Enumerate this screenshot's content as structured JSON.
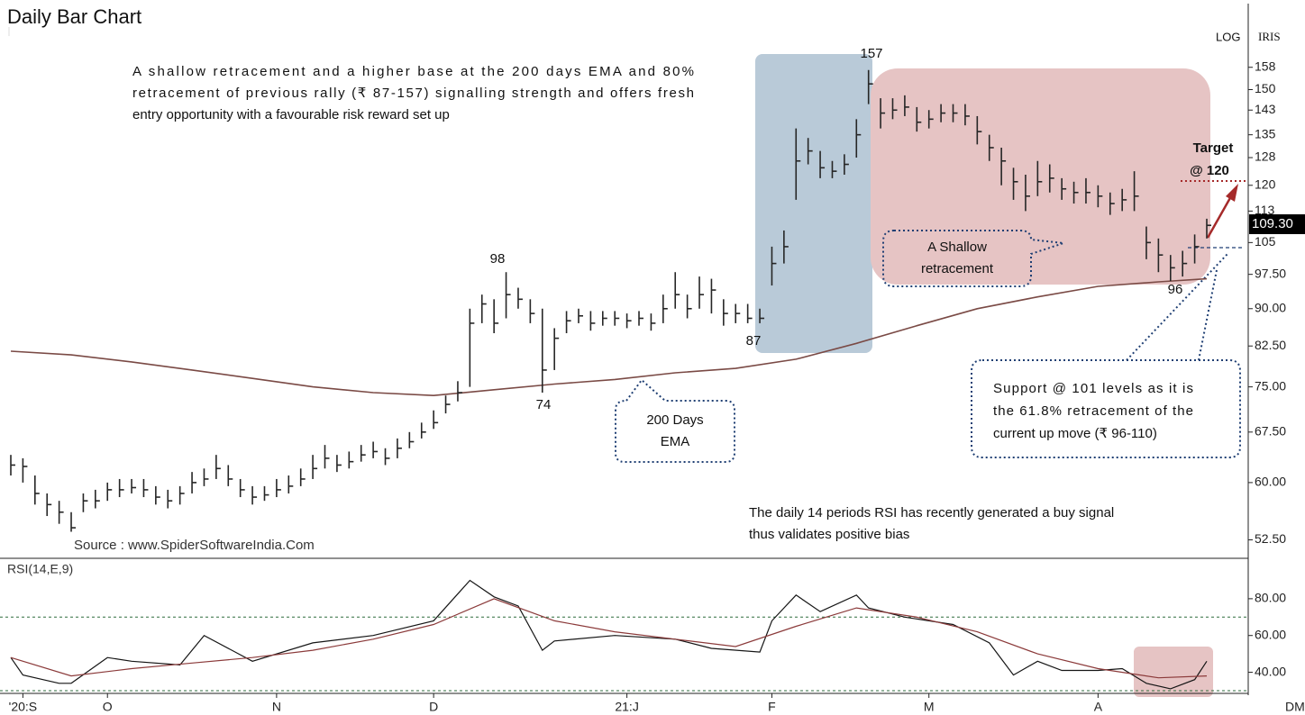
{
  "chart_data": [
    {
      "type": "ohlc",
      "title": "Daily Bar Chart",
      "scale_label": "LOG",
      "symbol": "IRIS",
      "source": "Source : www.SpiderSoftwareIndia.Com",
      "log_scale": true,
      "color": "#262626",
      "xlim": [
        0,
        99
      ],
      "ylim": [
        50.5,
        181
      ],
      "yticks": [
        {
          "value": 52.5,
          "label": "52.50"
        },
        {
          "value": 60,
          "label": "60.00"
        },
        {
          "value": 67.5,
          "label": "67.50"
        },
        {
          "value": 75,
          "label": "75.00"
        },
        {
          "value": 82.5,
          "label": "82.50"
        },
        {
          "value": 90,
          "label": "90.00"
        },
        {
          "value": 97.5,
          "label": "97.50"
        },
        105,
        113,
        120,
        128,
        135,
        143,
        150,
        158
      ],
      "high": [
        64,
        63.5,
        61,
        58.5,
        57.5,
        56,
        58.5,
        59,
        60,
        60.5,
        60.5,
        60.5,
        59.5,
        59,
        59.5,
        61.5,
        62,
        64,
        62.5,
        60.5,
        59.5,
        59.5,
        60.5,
        61,
        62,
        64,
        65.5,
        64,
        64.5,
        65.5,
        66,
        65,
        66.5,
        67.5,
        69,
        71,
        73.5,
        76,
        90,
        93,
        92,
        98,
        94.5,
        92,
        90,
        86,
        89.5,
        90,
        89.5,
        89.5,
        89.5,
        89,
        89.5,
        89,
        93,
        98,
        93,
        97,
        96.5,
        92,
        91,
        91,
        90,
        104,
        108,
        137,
        134,
        130,
        127,
        129,
        140,
        157,
        147,
        147,
        148,
        144,
        143,
        145,
        145,
        145,
        141,
        135,
        131,
        125,
        123,
        127,
        126,
        122,
        121,
        122,
        120,
        118,
        119,
        124,
        109,
        106,
        102,
        103,
        107,
        111
      ],
      "low": [
        61,
        60,
        57,
        55.5,
        54.5,
        53.5,
        56,
        56.5,
        57.5,
        58,
        58.5,
        58,
        57,
        56.5,
        57,
        58.5,
        59.5,
        60.5,
        59.5,
        58,
        57,
        57.5,
        58,
        58.5,
        59.5,
        60.5,
        62,
        61.5,
        62,
        63,
        63.5,
        62.5,
        63.5,
        65,
        66.5,
        68,
        70.5,
        72.5,
        75,
        87,
        85,
        88,
        90,
        87,
        74,
        78,
        85,
        87,
        85.5,
        86.5,
        86.5,
        86,
        86.5,
        85.5,
        87,
        90,
        88,
        90,
        89,
        86.5,
        87,
        87,
        87,
        95,
        100,
        116,
        126,
        122,
        122,
        123,
        128,
        145,
        137,
        140,
        141,
        136,
        137,
        139,
        139,
        138,
        132,
        127,
        120,
        116,
        113,
        117,
        118,
        116,
        115,
        115,
        114,
        112,
        113,
        113,
        101,
        98,
        96,
        97,
        100,
        106
      ],
      "close": [
        62.5,
        62.3,
        58.5,
        57,
        56,
        54,
        57.5,
        57.5,
        59,
        59,
        59.3,
        59,
        58,
        57.5,
        58.5,
        60,
        60.5,
        62,
        60.5,
        59,
        58,
        58.3,
        59,
        59.5,
        60.5,
        62,
        63.5,
        62.5,
        63,
        64,
        64.5,
        63.5,
        65,
        66,
        67.5,
        69,
        72,
        74,
        87,
        91,
        87,
        93,
        92,
        89,
        78,
        84,
        87.5,
        88.5,
        87,
        88,
        88,
        87.5,
        88,
        87,
        90,
        93,
        90,
        93,
        94,
        89,
        89,
        88,
        88,
        100,
        104,
        127,
        130,
        125,
        124,
        126,
        135,
        152,
        142,
        143,
        144,
        139,
        140,
        142,
        142,
        141,
        136,
        131,
        127,
        121,
        117,
        121,
        122,
        119,
        118,
        118,
        117,
        115,
        116,
        117,
        105,
        102,
        99,
        100,
        104,
        109.3
      ],
      "ema": {
        "color": "#7a4a45",
        "x": [
          0,
          5,
          10,
          15,
          20,
          25,
          30,
          35,
          40,
          45,
          50,
          55,
          60,
          65,
          70,
          75,
          80,
          85,
          90,
          95,
          99
        ],
        "values": [
          81.5,
          80.8,
          79.5,
          78,
          76.5,
          75,
          74,
          73.5,
          74.5,
          75.5,
          76.3,
          77.5,
          78.3,
          80,
          83,
          86.5,
          90,
          92.5,
          94.8,
          95.8,
          96.5
        ]
      },
      "price_tag": "109.30",
      "note": [
        "A shallow retracement and a higher base at the 200 days EMA and 80%",
        "retracement of previous rally (₹ 87-157) signalling strength and offers fresh",
        "entry opportunity with a favourable risk reward set up"
      ],
      "annotations": [
        "157",
        "98",
        "74",
        "87",
        "96",
        "Target",
        "@ 120",
        "A Shallow",
        "retracement",
        "200 Days",
        "EMA"
      ],
      "support_note": [
        "Support @ 101 levels as it is",
        "the 61.8% retracement of the",
        "current up move (₹ 96-110)"
      ],
      "rsi_note": [
        "The daily 14 periods RSI has recently generated a buy signal",
        "thus validates positive bias"
      ]
    },
    {
      "type": "line",
      "title": "RSI(14,E,9)",
      "xlim": [
        0,
        99
      ],
      "ylim": [
        29.5,
        101
      ],
      "yticks": [
        {
          "value": 40,
          "label": "40.00"
        },
        {
          "value": 60,
          "label": "60.00"
        },
        {
          "value": 80,
          "label": "80.00"
        }
      ],
      "reference_lines": [
        70,
        30
      ],
      "reference_color": "#2d6b3c",
      "xticks": [
        {
          "value": 1,
          "label": "'20:S"
        },
        {
          "value": 8,
          "label": "O"
        },
        {
          "value": 22,
          "label": "N"
        },
        {
          "value": 35,
          "label": "D"
        },
        {
          "value": 51,
          "label": "21:J"
        },
        {
          "value": 63,
          "label": "F"
        },
        {
          "value": 76,
          "label": "M"
        },
        {
          "value": 90,
          "label": "A"
        }
      ],
      "axis_end_label": "DM",
      "series": [
        {
          "color": "#151515",
          "x": [
            0,
            1,
            4,
            5,
            8,
            10,
            14,
            16,
            20,
            25,
            30,
            35,
            38,
            40,
            42,
            44,
            45,
            50,
            55,
            58,
            62,
            63,
            65,
            67,
            70,
            71,
            74,
            78,
            81,
            83,
            85,
            87,
            90,
            92,
            94,
            96,
            98,
            99
          ],
          "values": [
            48,
            38.5,
            34,
            34,
            48,
            46,
            44,
            60,
            46,
            56,
            60,
            68,
            90,
            81,
            76,
            52,
            57,
            60,
            58,
            53,
            51,
            68,
            82,
            73,
            82,
            75,
            70,
            66,
            56,
            38.5,
            46,
            41,
            41,
            42,
            34,
            31,
            36,
            46
          ]
        },
        {
          "color": "#8b3a3a",
          "x": [
            0,
            5,
            10,
            15,
            20,
            25,
            30,
            35,
            40,
            45,
            50,
            55,
            60,
            65,
            70,
            75,
            80,
            85,
            90,
            95,
            99
          ],
          "values": [
            48,
            38,
            42,
            45,
            48,
            52,
            58,
            66,
            80,
            68,
            62,
            58,
            54,
            65,
            75,
            70,
            62,
            50,
            42,
            37,
            38
          ]
        }
      ]
    }
  ]
}
